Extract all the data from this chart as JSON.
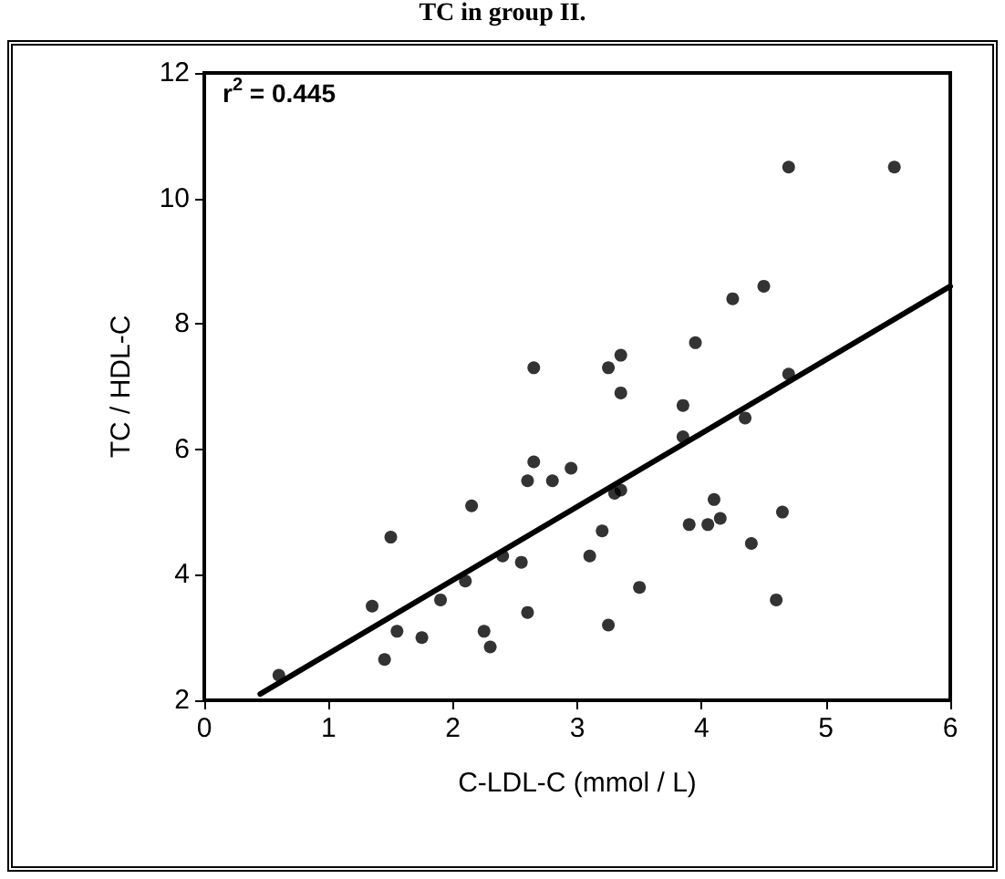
{
  "chart_data": {
    "type": "scatter",
    "title": "TC in group II.",
    "xlabel": "C-LDL-C (mmol / L)",
    "ylabel": "TC / HDL-C",
    "annotations": [
      "r$^{2}$ = 0.445"
    ],
    "xlim": [
      0,
      6
    ],
    "xticks": [
      0,
      1,
      2,
      3,
      4,
      5,
      6
    ],
    "ylim": [
      2,
      12
    ],
    "yticks": [
      2,
      4,
      6,
      8,
      10,
      12
    ],
    "grid": false,
    "series": [
      {
        "marker": "circle",
        "color": "#000000",
        "x": [
          0.6,
          1.35,
          1.45,
          1.5,
          1.55,
          1.75,
          1.9,
          2.1,
          2.15,
          2.25,
          2.3,
          2.4,
          2.55,
          2.6,
          2.65,
          2.65,
          2.6,
          2.8,
          2.95,
          3.1,
          3.2,
          3.25,
          3.25,
          3.3,
          3.35,
          3.35,
          3.35,
          3.5,
          3.85,
          3.85,
          3.9,
          3.95,
          4.05,
          4.1,
          4.15,
          4.25,
          4.35,
          4.4,
          4.5,
          4.6,
          4.65,
          4.7,
          4.7,
          5.55
        ],
        "values": [
          2.4,
          3.5,
          2.65,
          4.6,
          3.1,
          3.0,
          3.6,
          3.9,
          5.1,
          3.1,
          2.85,
          4.3,
          4.2,
          5.5,
          5.8,
          7.3,
          3.4,
          5.5,
          5.7,
          4.3,
          4.7,
          3.2,
          7.3,
          5.3,
          5.35,
          7.5,
          6.9,
          3.8,
          6.7,
          6.2,
          4.8,
          7.7,
          4.8,
          5.2,
          4.9,
          8.4,
          6.5,
          4.5,
          8.6,
          3.6,
          5.0,
          7.2,
          10.5,
          10.5
        ]
      },
      {
        "type": "line",
        "marker": "none",
        "color": "#000000",
        "x": [
          0.45,
          6
        ],
        "values": [
          2.1,
          8.6
        ]
      }
    ]
  }
}
